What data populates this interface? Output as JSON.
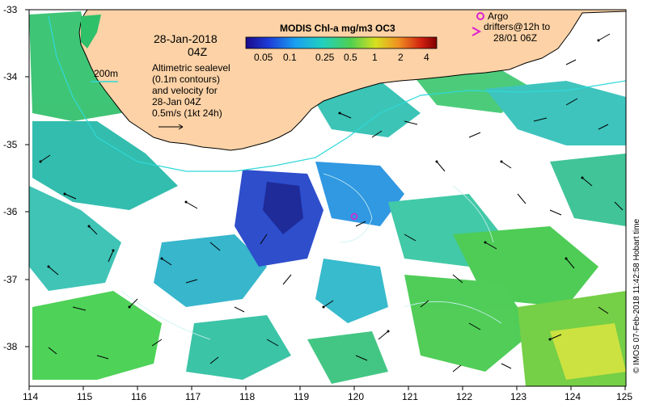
{
  "map": {
    "date": "28-Jan-2018",
    "time": "04Z",
    "contour_label": "200m",
    "altimetry_lines": [
      "Altimetric sealevel",
      "(0.1m contours)",
      "and velocity for",
      "28-Jan 04Z",
      "0.5m/s (1kt 24h)"
    ],
    "colorbar_title": "MODIS Chl-a mg/m3 OC3",
    "colorbar_ticks": [
      "0.05",
      "0.1",
      "0.25",
      "0.5",
      "1",
      "2",
      "4"
    ],
    "argo_label": "Argo",
    "drifter_label_lines": [
      "drifters@12h to",
      "28/01 06Z"
    ],
    "credit": "© IMOS 07-Feb-2018 11:42:58 Hobart time",
    "lon_ticks": [
      "114",
      "115",
      "116",
      "117",
      "118",
      "119",
      "120",
      "121",
      "122",
      "123",
      "124",
      "125"
    ],
    "lat_ticks": [
      "-33",
      "-34",
      "-35",
      "-36",
      "-37",
      "-38"
    ],
    "colors": {
      "land": "#fcd2a6",
      "ocean_missing": "#ffffff",
      "argo": "#e020d0",
      "contour": "#30d8d8"
    }
  }
}
